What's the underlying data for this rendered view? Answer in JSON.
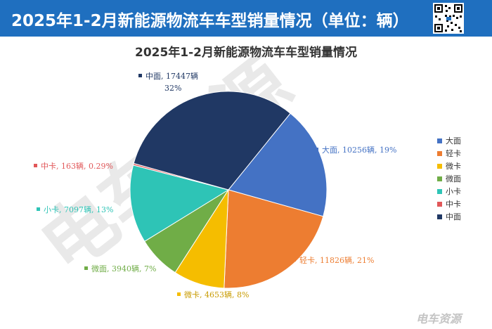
{
  "header": {
    "title": "2025年1-2月新能源物流车车型销量情况（单位：辆）"
  },
  "watermark": {
    "text": "电车资源",
    "corner_text": "电车资源"
  },
  "colors": {
    "header_bg": "#1f6fbf"
  },
  "chart_data": {
    "type": "pie",
    "title": "2025年1-2月新能源物流车车型销量情况",
    "series": [
      {
        "name": "大面",
        "value": 10256,
        "percent": "19%",
        "color": "#4472c4",
        "label": "大面, 10256辆, 19%"
      },
      {
        "name": "轻卡",
        "value": 11826,
        "percent": "21%",
        "color": "#ed7d31",
        "label": "轻卡, 11826辆, 21%"
      },
      {
        "name": "微卡",
        "value": 4653,
        "percent": "8%",
        "color": "#f5bd00",
        "label": "微卡, 4653辆, 8%"
      },
      {
        "name": "微面",
        "value": 3940,
        "percent": "7%",
        "color": "#70ad47",
        "label": "微面, 3940辆, 7%"
      },
      {
        "name": "小卡",
        "value": 7097,
        "percent": "13%",
        "color": "#2ec4b6",
        "label": "小卡, 7097辆, 13%"
      },
      {
        "name": "中卡",
        "value": 163,
        "percent": "0.29%",
        "color": "#e15759",
        "label": "中卡, 163辆, 0.29%"
      },
      {
        "name": "中面",
        "value": 17447,
        "percent": "32%",
        "color": "#203864",
        "label": "中面, 17447辆",
        "label_line2": "32%"
      }
    ],
    "legend": [
      "大面",
      "轻卡",
      "微卡",
      "微面",
      "小卡",
      "中卡",
      "中面"
    ],
    "legend_position": "right",
    "start_angle_deg": 51,
    "direction": "clockwise"
  }
}
